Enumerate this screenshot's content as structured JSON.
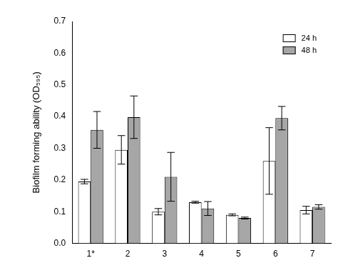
{
  "chart_data": {
    "type": "bar",
    "ylabel": "Biofilm forming ability (OD₅₉₅)",
    "categories": [
      "1*",
      "2",
      "3",
      "4",
      "5",
      "6",
      "7"
    ],
    "series": [
      {
        "name": "24 h",
        "color": "#ffffff",
        "values": [
          0.195,
          0.295,
          0.1,
          0.13,
          0.09,
          0.26,
          0.105
        ],
        "errors": [
          0.007,
          0.045,
          0.01,
          0.003,
          0.003,
          0.105,
          0.012
        ]
      },
      {
        "name": "48 h",
        "color": "#a6a6a6",
        "values": [
          0.358,
          0.398,
          0.21,
          0.11,
          0.08,
          0.395,
          0.115
        ],
        "errors": [
          0.058,
          0.067,
          0.077,
          0.022,
          0.003,
          0.037,
          0.007
        ]
      }
    ],
    "ylim": [
      0,
      0.7
    ],
    "yticks": [
      {
        "value": 0,
        "label": "0.0"
      },
      0.1,
      0.2,
      0.3,
      0.4,
      0.5,
      0.6,
      0.7
    ],
    "grid": false,
    "legend": "upper right"
  }
}
